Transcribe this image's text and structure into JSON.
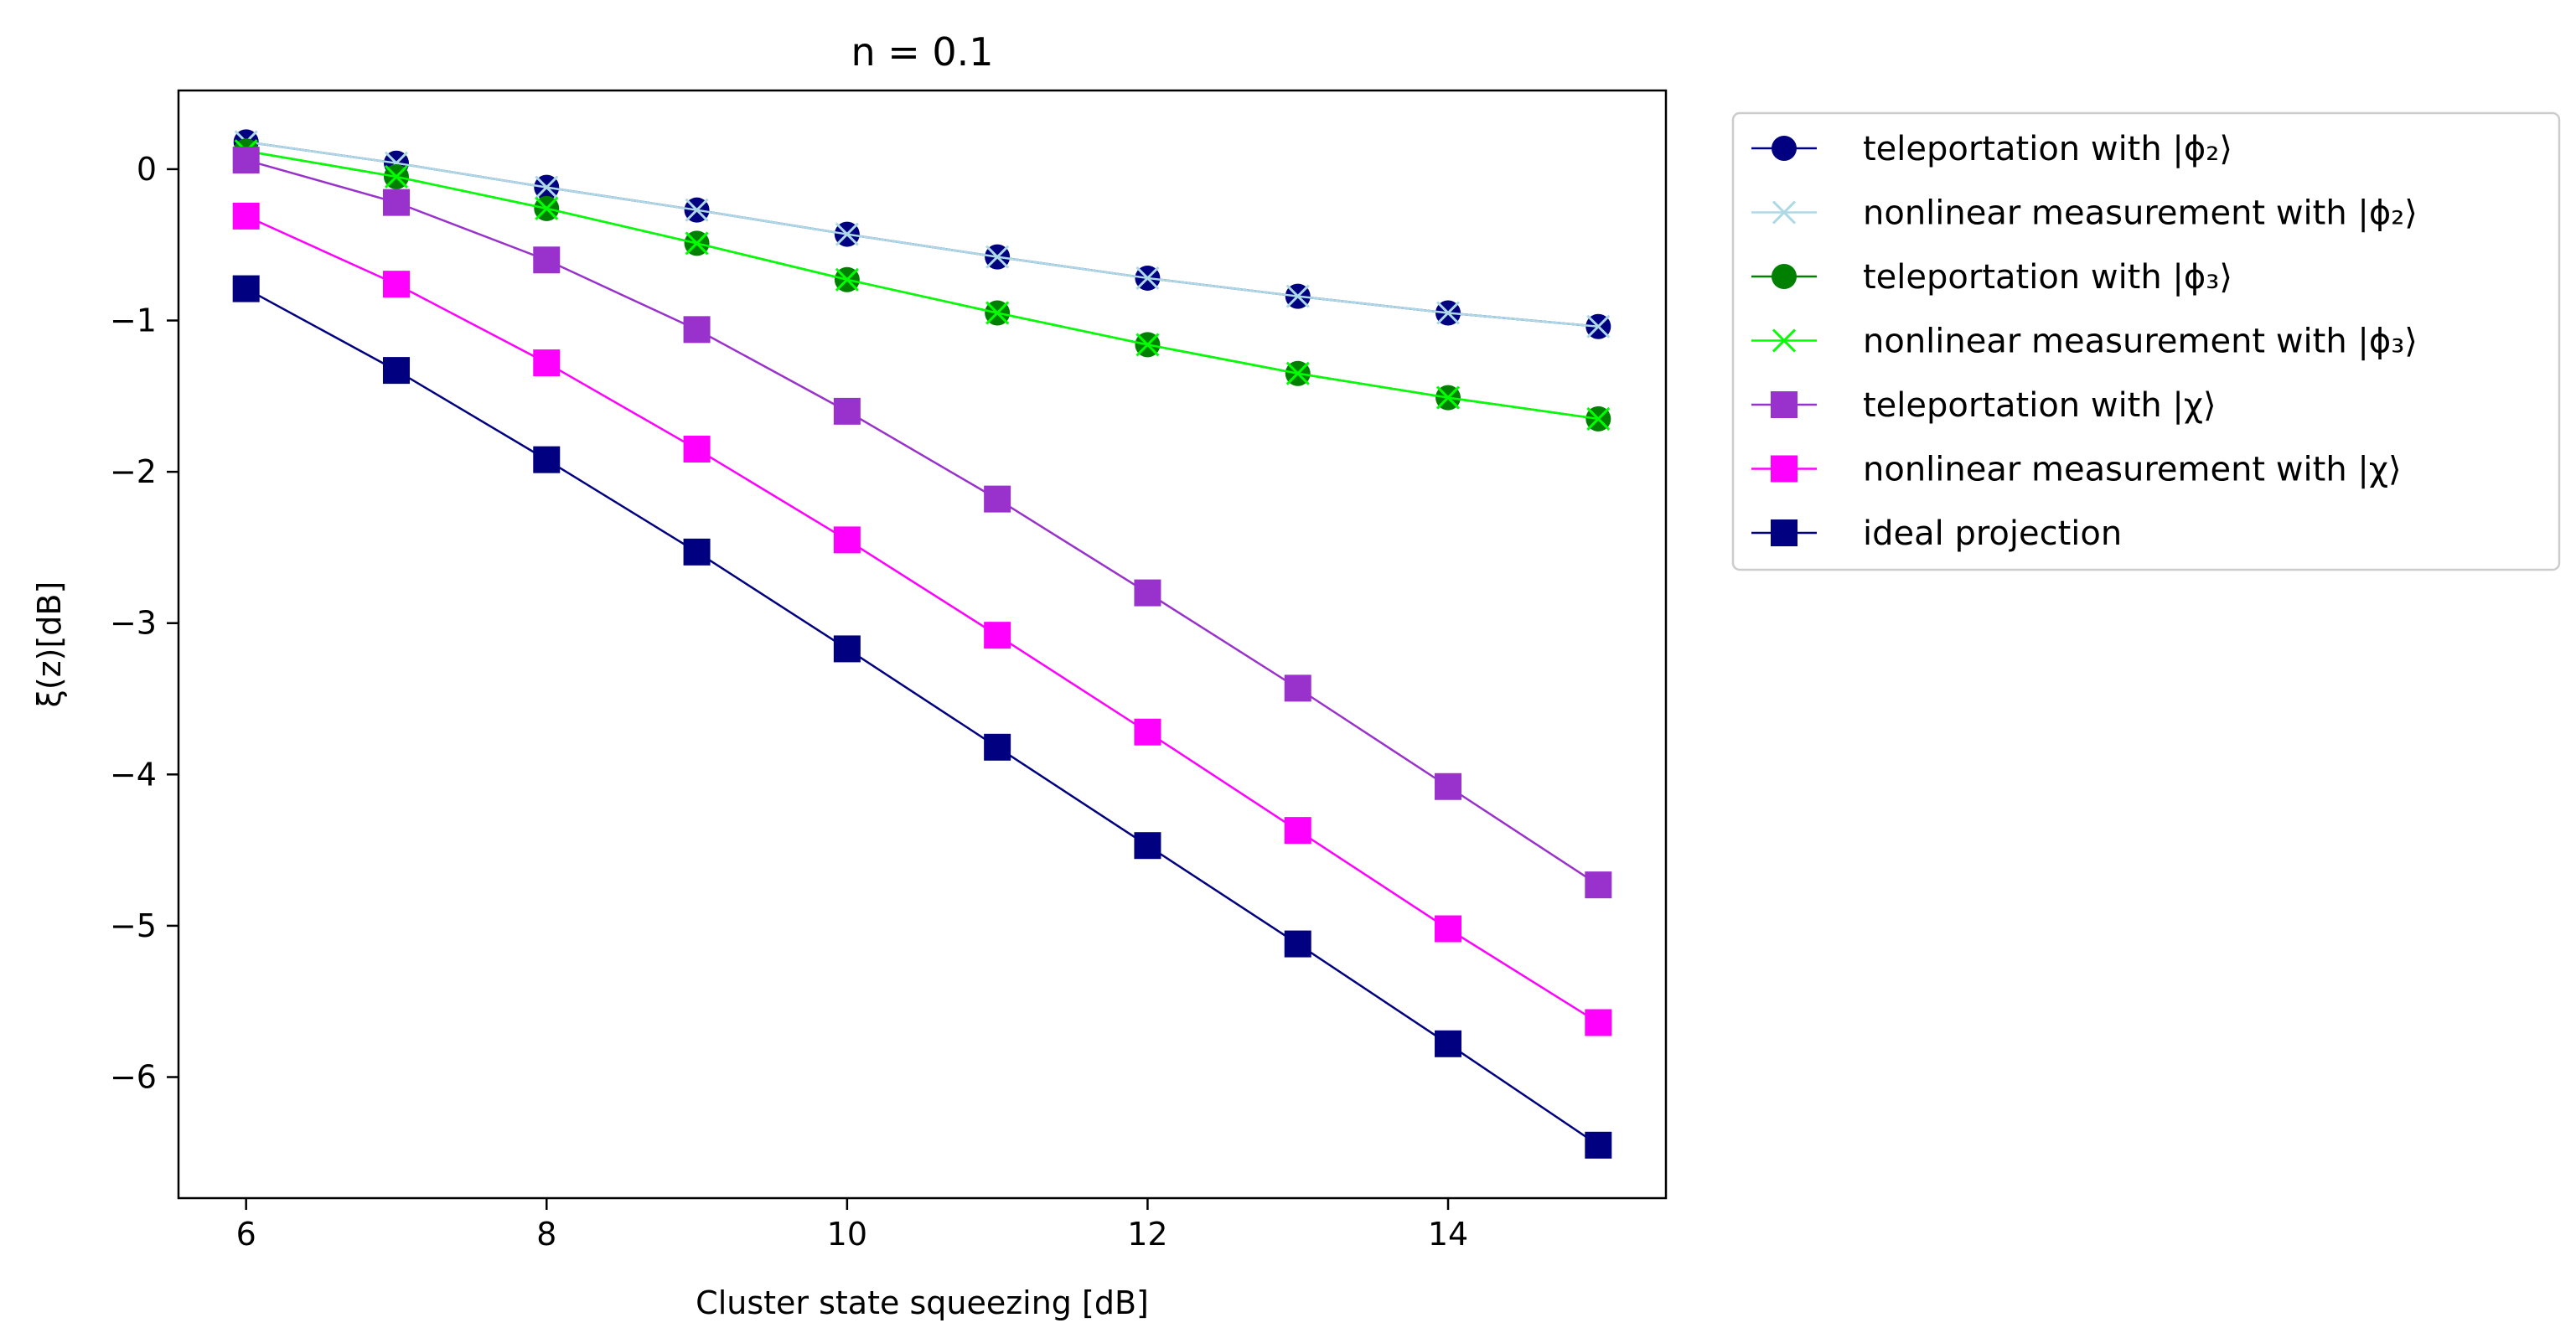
{
  "chart_data": {
    "type": "line",
    "title": "n = 0.1",
    "xlabel": "Cluster state squeezing [dB]",
    "ylabel": "ξ(z)[dB]",
    "xlim": [
      5.55,
      15.45
    ],
    "ylim": [
      -6.8,
      0.52
    ],
    "xticks": [
      6,
      8,
      10,
      12,
      14
    ],
    "xtick_labels": [
      "6",
      "8",
      "10",
      "12",
      "14"
    ],
    "yticks": [
      0,
      -1,
      -2,
      -3,
      -4,
      -5,
      -6
    ],
    "ytick_labels": [
      "0",
      "−1",
      "−2",
      "−3",
      "−4",
      "−5",
      "−6"
    ],
    "grid": false,
    "legend_position": "outside-right-top",
    "x": [
      6,
      7,
      8,
      9,
      10,
      11,
      12,
      13,
      14,
      15
    ],
    "series": [
      {
        "name": "teleportation with |ϕ₂⟩",
        "color": "#000080",
        "marker": "circle",
        "values": [
          0.18,
          0.04,
          -0.12,
          -0.27,
          -0.43,
          -0.58,
          -0.72,
          -0.84,
          -0.95,
          -1.04
        ]
      },
      {
        "name": "nonlinear measurement with |ϕ₂⟩",
        "color": "#add8e6",
        "marker": "x",
        "values": [
          0.18,
          0.04,
          -0.12,
          -0.27,
          -0.43,
          -0.58,
          -0.72,
          -0.84,
          -0.95,
          -1.04
        ]
      },
      {
        "name": "teleportation with |ϕ₃⟩",
        "color": "#008000",
        "marker": "circle",
        "values": [
          0.12,
          -0.05,
          -0.26,
          -0.49,
          -0.73,
          -0.95,
          -1.16,
          -1.35,
          -1.51,
          -1.65
        ]
      },
      {
        "name": "nonlinear measurement with |ϕ₃⟩",
        "color": "#00ff00",
        "marker": "x",
        "values": [
          0.12,
          -0.05,
          -0.26,
          -0.49,
          -0.73,
          -0.95,
          -1.16,
          -1.35,
          -1.51,
          -1.65
        ]
      },
      {
        "name": "teleportation with |χ⟩",
        "color": "#9932cc",
        "marker": "square",
        "values": [
          0.06,
          -0.22,
          -0.6,
          -1.06,
          -1.6,
          -2.18,
          -2.8,
          -3.43,
          -4.08,
          -4.73
        ]
      },
      {
        "name": "nonlinear measurement with |χ⟩",
        "color": "#ff00ff",
        "marker": "square",
        "values": [
          -0.31,
          -0.76,
          -1.28,
          -1.85,
          -2.45,
          -3.08,
          -3.72,
          -4.37,
          -5.02,
          -5.64
        ]
      },
      {
        "name": "ideal projection",
        "color": "#000080",
        "marker": "square",
        "values": [
          -0.79,
          -1.33,
          -1.92,
          -2.53,
          -3.17,
          -3.82,
          -4.47,
          -5.12,
          -5.78,
          -6.45
        ]
      }
    ]
  }
}
